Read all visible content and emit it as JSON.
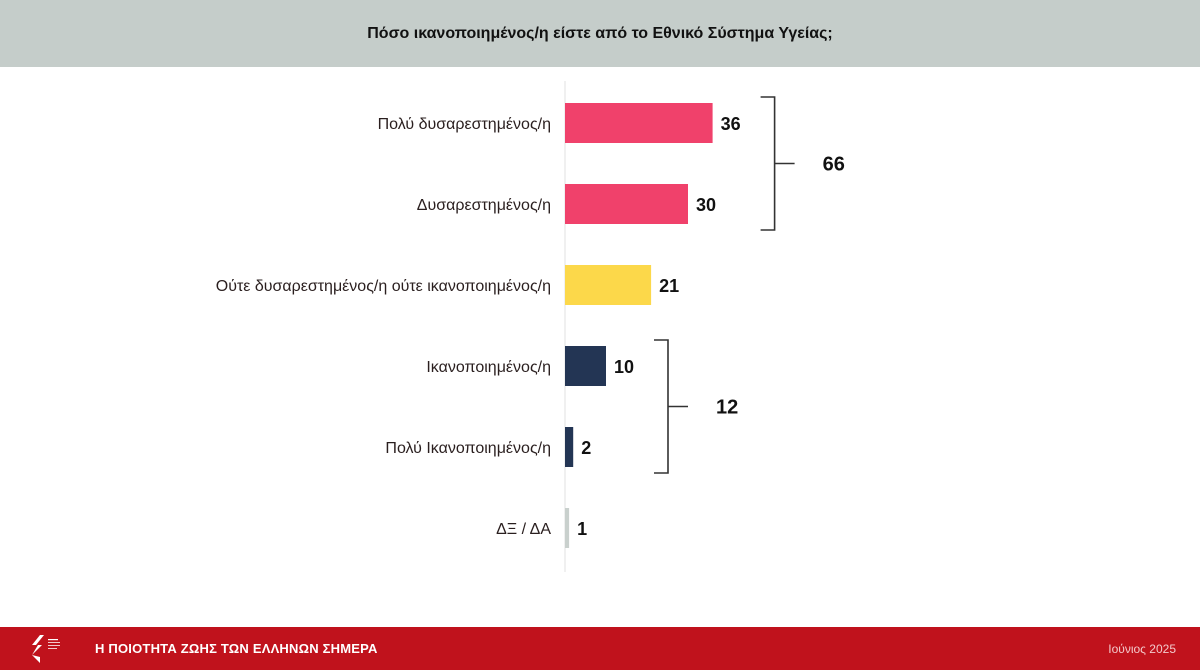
{
  "header": {
    "title": "Πόσο ικανοποιημένος/η είστε από το Εθνικό Σύστημα Υγείας;"
  },
  "chart_data": {
    "type": "bar",
    "orientation": "horizontal",
    "title": "Πόσο ικανοποιημένος/η είστε από το Εθνικό Σύστημα Υγείας;",
    "categories": [
      "Πολύ δυσαρεστημένος/η",
      "Δυσαρεστημένος/η",
      "Ούτε δυσαρεστημένος/η ούτε ικανοποιημένος/η",
      "Ικανοποιημένος/η",
      "Πολύ Ικανοποιημένος/η",
      "ΔΞ / ΔΑ"
    ],
    "values": [
      36,
      30,
      21,
      10,
      2,
      1
    ],
    "value_labels": [
      "36",
      "30",
      "21",
      "10",
      "2",
      "1"
    ],
    "colors": [
      "#f0416b",
      "#f0416b",
      "#fcd84a",
      "#233554",
      "#233554",
      "#c9d0cd"
    ],
    "groups": [
      {
        "label": "66",
        "from": 0,
        "to": 1
      },
      {
        "label": "12",
        "from": 3,
        "to": 4
      }
    ],
    "legend": "none",
    "grid": false
  },
  "footer": {
    "title": "Η ΠΟΙΟΤΗΤΑ ΖΩΗΣ ΤΩΝ ΕΛΛΗΝΩΝ ΣΗΜΕΡΑ",
    "date": "Ιούνιος 2025"
  }
}
